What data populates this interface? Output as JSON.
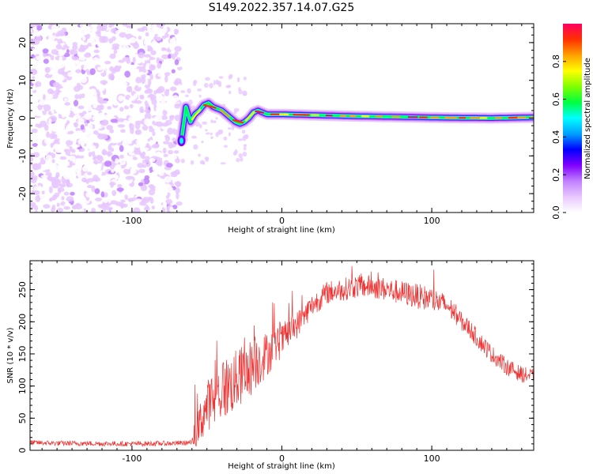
{
  "title": "S149.2022.357.14.07.G25",
  "chart_data": [
    {
      "type": "heatmap",
      "title": "",
      "xlabel": "Height of straight line (km)",
      "ylabel": "Frequency (Hz)",
      "xlim": [
        -168,
        168
      ],
      "ylim": [
        -25,
        25
      ],
      "xticks": [
        -100,
        0,
        100
      ],
      "yticks": [
        -20,
        -10,
        0,
        10,
        20
      ],
      "colorbar": {
        "label": "Normalized spectral amplitude",
        "range": [
          0,
          1
        ],
        "ticks": [
          0.0,
          0.2,
          0.4,
          0.6,
          0.8
        ],
        "colormap": [
          "#ffffff",
          "#e8c8ff",
          "#c080ff",
          "#8000ff",
          "#0000ff",
          "#00a0ff",
          "#00ffff",
          "#00ff40",
          "#80ff00",
          "#ffff00",
          "#ffa000",
          "#ff3000",
          "#ff0060"
        ]
      },
      "noise_region_x": [
        -168,
        -68
      ],
      "noise_freq_range": [
        -25,
        25
      ],
      "signal_ridge": {
        "x": [
          -67,
          -64,
          -61,
          -58,
          -55,
          -52,
          -49,
          -46,
          -43,
          -40,
          -37,
          -34,
          -31,
          -28,
          -25,
          -22,
          -19,
          -16,
          -13,
          -10,
          0,
          20,
          50,
          80,
          110,
          140,
          168
        ],
        "freq": [
          -6,
          3,
          -1,
          1,
          2,
          3.5,
          4,
          3,
          2.5,
          2,
          1,
          0,
          -1,
          -1.5,
          -1,
          0,
          1.5,
          2,
          1.5,
          1,
          1,
          0.8,
          0.5,
          0.3,
          0.1,
          0,
          0.2
        ]
      }
    },
    {
      "type": "line",
      "title": "",
      "xlabel": "Height of straight line (km)",
      "ylabel": "SNR (10 * v/v)",
      "xlim": [
        -168,
        168
      ],
      "ylim": [
        0,
        295
      ],
      "xticks": [
        -100,
        0,
        100
      ],
      "yticks": [
        0,
        50,
        100,
        150,
        200,
        250
      ],
      "color": "#ee3333",
      "envelope": {
        "x": [
          -168,
          -150,
          -100,
          -70,
          -60,
          -56,
          -52,
          -48,
          -44,
          -40,
          -35,
          -30,
          -25,
          -20,
          -15,
          -10,
          -5,
          0,
          5,
          10,
          15,
          20,
          25,
          30,
          40,
          50,
          60,
          70,
          80,
          90,
          100,
          110,
          115,
          120,
          125,
          130,
          140,
          150,
          160,
          168
        ],
        "y": [
          12,
          11,
          10,
          11,
          12,
          30,
          60,
          75,
          80,
          95,
          100,
          110,
          120,
          130,
          140,
          150,
          160,
          170,
          185,
          195,
          210,
          225,
          235,
          245,
          250,
          255,
          255,
          250,
          245,
          240,
          235,
          225,
          215,
          200,
          190,
          175,
          150,
          130,
          118,
          115
        ]
      },
      "noise_amplitude": {
        "x": [
          -168,
          -60,
          -55,
          -40,
          -20,
          0,
          20,
          60,
          100,
          120,
          168
        ],
        "y": [
          4,
          4,
          35,
          50,
          45,
          25,
          18,
          18,
          20,
          15,
          12
        ]
      }
    }
  ]
}
